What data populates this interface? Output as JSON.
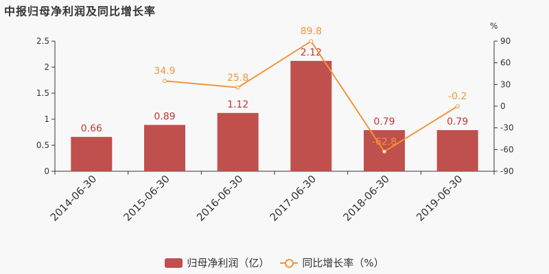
{
  "title": "中报归母净利润及同比增长率",
  "chart_data": {
    "type": "bar",
    "categories": [
      "2014-06-30",
      "2015-06-30",
      "2016-06-30",
      "2017-06-30",
      "2018-06-30",
      "2019-06-30"
    ],
    "series": [
      {
        "name": "归母净利润（亿）",
        "type": "bar",
        "axis": "left",
        "color": "#c0504d",
        "values": [
          0.66,
          0.89,
          1.12,
          2.12,
          0.79,
          0.79
        ],
        "labels": [
          "0.66",
          "0.89",
          "1.12",
          "2.12",
          "0.79",
          "0.79"
        ]
      },
      {
        "name": "同比增长率（%）",
        "type": "line",
        "axis": "right",
        "color": "#f0953a",
        "values": [
          null,
          34.9,
          25.8,
          89.8,
          -62.8,
          -0.2
        ],
        "labels": [
          null,
          "34.9",
          "25.8",
          "89.8",
          "-62.8",
          "-0.2"
        ]
      }
    ],
    "y_left": {
      "min": 0,
      "max": 2.5,
      "ticks": [
        "0",
        "0.5",
        "1",
        "1.5",
        "2",
        "2.5"
      ]
    },
    "y_right": {
      "min": -90,
      "max": 90,
      "unit": "%",
      "ticks": [
        "-90",
        "-60",
        "-30",
        "0",
        "30",
        "60",
        "90"
      ]
    },
    "grid": false,
    "legend_position": "bottom"
  }
}
